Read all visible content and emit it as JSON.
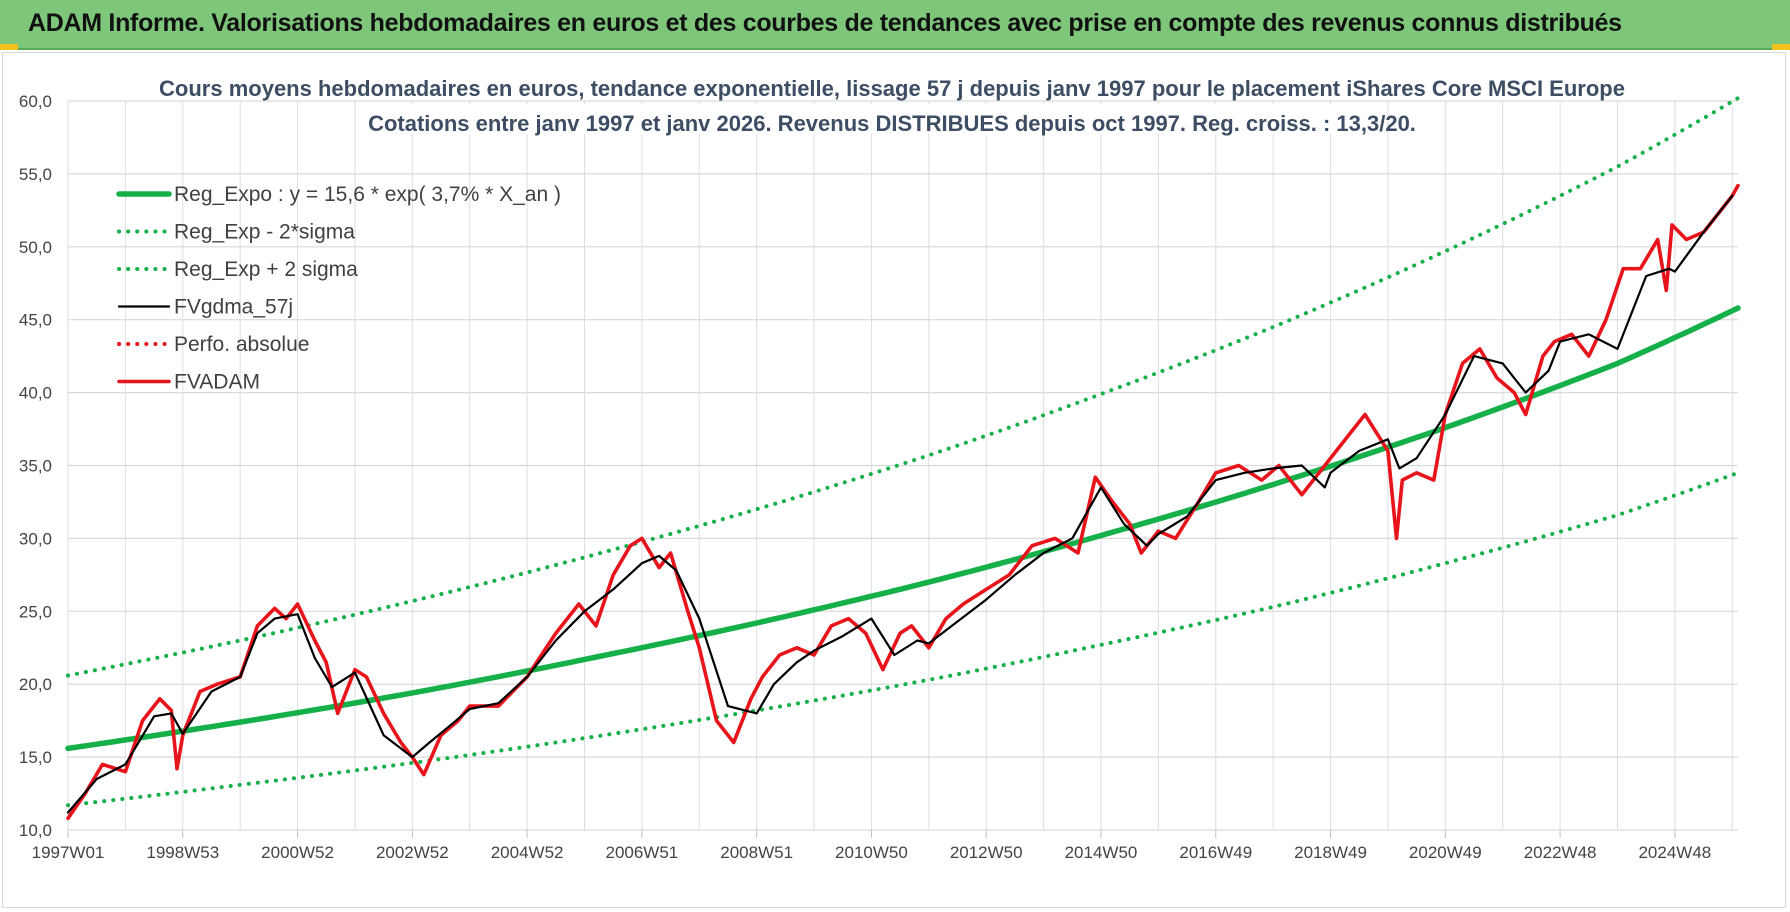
{
  "banner": {
    "title": "ADAM Informe. Valorisations hebdomadaires en euros et des courbes de tendances avec prise en compte des revenus connus distribués"
  },
  "colors": {
    "banner_bg": "#7ec77a",
    "trend": "#16b04a",
    "fv": "#e8141b",
    "gdma": "#000000",
    "perfo": "#e8141b"
  },
  "chart_data": {
    "type": "line",
    "title": "Cours moyens hebdomadaires en euros, tendance exponentielle, lissage 57 j depuis janv 1997 pour le placement iShares Core MSCI Europe",
    "subtitle": "Cotations entre janv 1997 et janv 2026. Revenus DISTRIBUES depuis oct 1997. Reg. croiss. : 13,3/20.",
    "xlabel": "",
    "ylabel": "",
    "ylim": [
      10,
      60
    ],
    "yticks": [
      "10,0",
      "15,0",
      "20,0",
      "25,0",
      "30,0",
      "35,0",
      "40,0",
      "45,0",
      "50,0",
      "55,0",
      "60,0"
    ],
    "xlim": [
      1997.0,
      2026.1
    ],
    "xticks": [
      {
        "label": "1997W01",
        "year": 1997.0
      },
      {
        "label": "1998W53",
        "year": 1999.0
      },
      {
        "label": "2000W52",
        "year": 2001.0
      },
      {
        "label": "2002W52",
        "year": 2003.0
      },
      {
        "label": "2004W52",
        "year": 2005.0
      },
      {
        "label": "2006W51",
        "year": 2007.0
      },
      {
        "label": "2008W51",
        "year": 2009.0
      },
      {
        "label": "2010W50",
        "year": 2011.0
      },
      {
        "label": "2012W50",
        "year": 2013.0
      },
      {
        "label": "2014W50",
        "year": 2015.0
      },
      {
        "label": "2016W49",
        "year": 2017.0
      },
      {
        "label": "2018W49",
        "year": 2019.0
      },
      {
        "label": "2020W49",
        "year": 2021.0
      },
      {
        "label": "2022W48",
        "year": 2023.0
      },
      {
        "label": "2024W48",
        "year": 2025.0
      }
    ],
    "grid": true,
    "legend_position": "top-left",
    "series": [
      {
        "name": "Reg_Expo : y = 15,6 * exp( 3,7% *  X_an )",
        "style": "solid-thick",
        "color": "#16b04a",
        "x": [
          1997,
          2000,
          2003,
          2006,
          2009,
          2012,
          2015,
          2018,
          2021,
          2024,
          2026.1
        ],
        "y": [
          15.6,
          17.4,
          19.4,
          21.7,
          24.2,
          27.0,
          30.2,
          33.7,
          37.6,
          42.0,
          45.8
        ]
      },
      {
        "name": "Reg_Exp - 2*sigma",
        "style": "dotted",
        "color": "#16b04a",
        "x": [
          1997,
          2000,
          2003,
          2006,
          2009,
          2012,
          2015,
          2018,
          2021,
          2024,
          2026.1
        ],
        "y": [
          11.7,
          13.1,
          14.6,
          16.3,
          18.2,
          20.3,
          22.7,
          25.3,
          28.3,
          31.6,
          34.5
        ]
      },
      {
        "name": "Reg_Exp + 2 sigma",
        "style": "dotted",
        "color": "#16b04a",
        "x": [
          1997,
          2000,
          2003,
          2006,
          2009,
          2012,
          2015,
          2018,
          2021,
          2024,
          2026.1
        ],
        "y": [
          20.6,
          23.0,
          25.7,
          28.7,
          32.0,
          35.7,
          39.9,
          44.5,
          49.7,
          55.5,
          60.2
        ]
      },
      {
        "name": "FVgdma_57j",
        "style": "solid",
        "color": "#000000",
        "x": [
          1997.0,
          1997.5,
          1998.0,
          1998.5,
          1998.8,
          1999.0,
          1999.5,
          2000.0,
          2000.3,
          2000.6,
          2001.0,
          2001.3,
          2001.6,
          2002.0,
          2002.5,
          2003.0,
          2003.3,
          2003.7,
          2004.0,
          2004.5,
          2005.0,
          2005.5,
          2006.0,
          2006.5,
          2007.0,
          2007.3,
          2007.6,
          2008.0,
          2008.5,
          2009.0,
          2009.3,
          2009.7,
          2010.0,
          2010.5,
          2011.0,
          2011.4,
          2011.8,
          2012.0,
          2012.5,
          2013.0,
          2013.5,
          2014.0,
          2014.5,
          2015.0,
          2015.4,
          2015.8,
          2016.0,
          2016.5,
          2017.0,
          2017.5,
          2018.0,
          2018.5,
          2018.9,
          2019.0,
          2019.5,
          2020.0,
          2020.2,
          2020.5,
          2021.0,
          2021.5,
          2022.0,
          2022.4,
          2022.8,
          2023.0,
          2023.5,
          2024.0,
          2024.5,
          2024.9,
          2025.0,
          2025.5,
          2026.0
        ],
        "y": [
          11.2,
          13.5,
          14.5,
          17.8,
          18.0,
          16.6,
          19.5,
          20.5,
          23.5,
          24.5,
          24.8,
          21.8,
          19.8,
          20.8,
          16.5,
          15.0,
          16.0,
          17.3,
          18.3,
          18.7,
          20.5,
          23.0,
          25.0,
          26.5,
          28.3,
          28.8,
          27.8,
          24.5,
          18.5,
          18.0,
          20.0,
          21.5,
          22.3,
          23.3,
          24.5,
          22.0,
          23.0,
          22.8,
          24.3,
          25.8,
          27.5,
          29.0,
          30.0,
          33.5,
          31.0,
          29.5,
          30.3,
          31.5,
          34.0,
          34.5,
          34.8,
          35.0,
          33.5,
          34.5,
          36.0,
          36.8,
          34.8,
          35.5,
          38.5,
          42.5,
          42.0,
          40.0,
          41.5,
          43.5,
          44.0,
          43.0,
          48.0,
          48.5,
          48.3,
          51.0,
          53.5
        ]
      },
      {
        "name": "Perfo. absolue",
        "style": "dotted",
        "color": "#e8141b",
        "x": [],
        "y": []
      },
      {
        "name": "FVADAM",
        "style": "solid-thick",
        "color": "#e8141b",
        "x": [
          1997.0,
          1997.3,
          1997.6,
          1998.0,
          1998.3,
          1998.6,
          1998.8,
          1998.9,
          1999.0,
          1999.3,
          1999.6,
          2000.0,
          2000.3,
          2000.6,
          2000.8,
          2001.0,
          2001.3,
          2001.5,
          2001.7,
          2002.0,
          2002.2,
          2002.5,
          2002.8,
          2003.0,
          2003.2,
          2003.5,
          2003.8,
          2004.0,
          2004.5,
          2005.0,
          2005.5,
          2005.9,
          2006.2,
          2006.5,
          2006.8,
          2007.0,
          2007.3,
          2007.5,
          2007.8,
          2008.0,
          2008.3,
          2008.6,
          2008.9,
          2009.1,
          2009.4,
          2009.7,
          2010.0,
          2010.3,
          2010.6,
          2010.9,
          2011.2,
          2011.5,
          2011.7,
          2012.0,
          2012.3,
          2012.6,
          2013.0,
          2013.4,
          2013.8,
          2014.2,
          2014.6,
          2014.9,
          2015.2,
          2015.5,
          2015.7,
          2016.0,
          2016.3,
          2016.7,
          2017.0,
          2017.4,
          2017.8,
          2018.1,
          2018.5,
          2018.9,
          2019.2,
          2019.6,
          2020.0,
          2020.15,
          2020.25,
          2020.5,
          2020.8,
          2021.0,
          2021.3,
          2021.6,
          2021.9,
          2022.2,
          2022.4,
          2022.7,
          2022.9,
          2023.2,
          2023.5,
          2023.8,
          2024.1,
          2024.4,
          2024.7,
          2024.85,
          2024.95,
          2025.2,
          2025.5,
          2025.8,
          2026.0,
          2026.1
        ],
        "y": [
          10.8,
          12.5,
          14.5,
          14.0,
          17.5,
          19.0,
          18.2,
          14.2,
          16.5,
          19.5,
          20.0,
          20.5,
          24.0,
          25.2,
          24.5,
          25.5,
          23.0,
          21.5,
          18.0,
          21.0,
          20.5,
          18.0,
          16.0,
          15.0,
          13.8,
          16.5,
          17.5,
          18.5,
          18.5,
          20.5,
          23.5,
          25.5,
          24.0,
          27.5,
          29.5,
          30.0,
          28.0,
          29.0,
          25.0,
          22.5,
          17.5,
          16.0,
          19.0,
          20.5,
          22.0,
          22.5,
          22.0,
          24.0,
          24.5,
          23.5,
          21.0,
          23.5,
          24.0,
          22.5,
          24.5,
          25.5,
          26.5,
          27.5,
          29.5,
          30.0,
          29.0,
          34.2,
          32.5,
          31.0,
          29.0,
          30.5,
          30.0,
          32.5,
          34.5,
          35.0,
          34.0,
          35.0,
          33.0,
          35.0,
          36.5,
          38.5,
          36.0,
          30.0,
          34.0,
          34.5,
          34.0,
          38.5,
          42.0,
          43.0,
          41.0,
          40.0,
          38.5,
          42.5,
          43.5,
          44.0,
          42.5,
          45.0,
          48.5,
          48.5,
          50.5,
          47.0,
          51.5,
          50.5,
          51.0,
          52.5,
          53.5,
          54.2
        ]
      }
    ]
  }
}
